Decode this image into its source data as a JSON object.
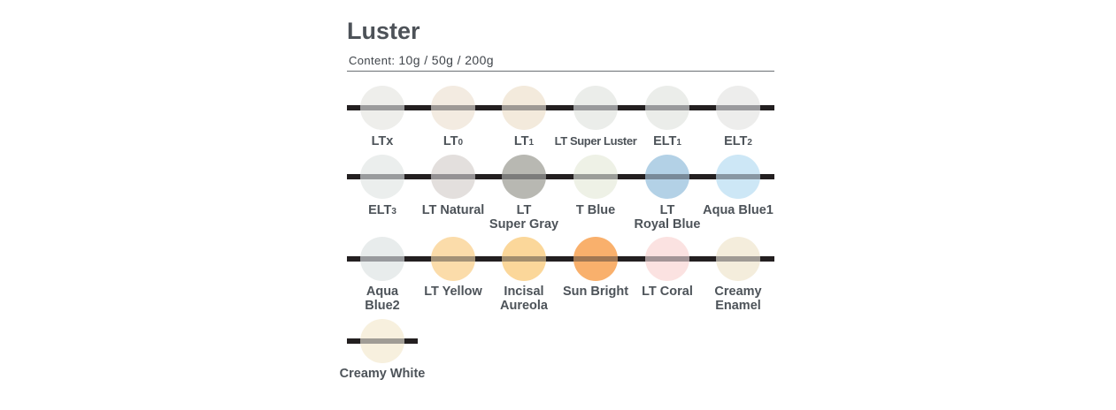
{
  "title": "Luster",
  "content_label": "Content:",
  "content_value": "10g / 50g / 200g",
  "rows": [
    {
      "swatches": [
        {
          "label": "LTx",
          "color": "#eeeeeb"
        },
        {
          "label": "LT",
          "sub": "0",
          "color": "#f3ebe1"
        },
        {
          "label": "LT",
          "sub": "1",
          "color": "#f3eadc"
        },
        {
          "label": "LT Super Luster",
          "color": "#ebedea"
        },
        {
          "label": "ELT",
          "sub": "1",
          "color": "#ebedea"
        },
        {
          "label": "ELT",
          "sub": "2",
          "color": "#ededec"
        }
      ]
    },
    {
      "swatches": [
        {
          "label": "ELT",
          "sub": "3",
          "color": "#ebeeed"
        },
        {
          "label": "LT Natural",
          "color": "#e3dfdd"
        },
        {
          "label": "LT",
          "label2": "Super Gray",
          "color": "#b8b8b2"
        },
        {
          "label": "T Blue",
          "color": "#eef1e6"
        },
        {
          "label": "LT",
          "label2": "Royal Blue",
          "color": "#b3d1e6"
        },
        {
          "label": "Aqua Blue1",
          "color": "#cde7f6"
        }
      ]
    },
    {
      "swatches": [
        {
          "label": "Aqua",
          "label2": "Blue2",
          "color": "#e8ecec"
        },
        {
          "label": "LT Yellow",
          "color": "#fbdcaa"
        },
        {
          "label": "Incisal",
          "label2": "Aureola",
          "color": "#fbd79a"
        },
        {
          "label": "Sun Bright",
          "color": "#f9b06c"
        },
        {
          "label": "LT Coral",
          "color": "#fbe2e1"
        },
        {
          "label": "Creamy",
          "label2": "Enamel",
          "color": "#f4eddc"
        }
      ]
    },
    {
      "swatches": [
        {
          "label": "Creamy White",
          "color": "#f7f0de"
        }
      ]
    }
  ]
}
